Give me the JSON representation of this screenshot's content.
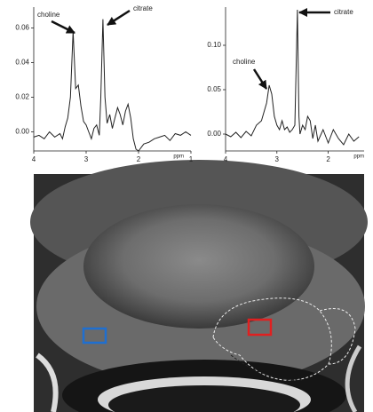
{
  "chart_data": [
    {
      "type": "line",
      "xlabel": "ppm",
      "color": "#222",
      "annotations": [
        "choline",
        "citrate"
      ],
      "x": [
        4.0,
        3.9,
        3.8,
        3.7,
        3.6,
        3.5,
        3.45,
        3.4,
        3.35,
        3.3,
        3.25,
        3.2,
        3.15,
        3.1,
        3.05,
        3.0,
        2.95,
        2.9,
        2.85,
        2.8,
        2.75,
        2.72,
        2.68,
        2.64,
        2.6,
        2.55,
        2.5,
        2.45,
        2.4,
        2.35,
        2.3,
        2.25,
        2.2,
        2.15,
        2.1,
        2.05,
        2.0,
        1.9,
        1.8,
        1.7,
        1.6,
        1.5,
        1.4,
        1.3,
        1.2,
        1.1,
        1.0
      ],
      "values": [
        -0.003,
        -0.002,
        -0.004,
        0.0,
        -0.003,
        -0.001,
        -0.004,
        0.003,
        0.008,
        0.02,
        0.058,
        0.025,
        0.027,
        0.015,
        0.006,
        0.004,
        0.0,
        -0.004,
        0.002,
        0.004,
        -0.002,
        0.02,
        0.065,
        0.02,
        0.005,
        0.01,
        0.002,
        0.008,
        0.014,
        0.01,
        0.004,
        0.012,
        0.016,
        0.008,
        -0.004,
        -0.01,
        -0.011,
        -0.007,
        -0.006,
        -0.004,
        -0.003,
        -0.002,
        -0.005,
        -0.001,
        -0.002,
        0.0,
        -0.002
      ],
      "xlim": [
        4,
        1
      ],
      "xticks": [
        4,
        3,
        2,
        1
      ],
      "ylim": [
        -0.011,
        0.072
      ],
      "yticks": [
        {
          "value": 0,
          "label": "0.00"
        },
        0.02,
        0.04,
        0.06
      ]
    },
    {
      "type": "line",
      "xlabel": "ppm",
      "color": "#222",
      "annotations": [
        "choline",
        "citrate"
      ],
      "x": [
        4.0,
        3.9,
        3.8,
        3.7,
        3.6,
        3.5,
        3.4,
        3.3,
        3.2,
        3.15,
        3.1,
        3.05,
        3.0,
        2.95,
        2.9,
        2.85,
        2.8,
        2.75,
        2.7,
        2.65,
        2.6,
        2.57,
        2.55,
        2.5,
        2.45,
        2.4,
        2.35,
        2.3,
        2.25,
        2.2,
        2.1,
        2.0,
        1.9,
        1.8,
        1.7,
        1.6,
        1.5,
        1.4
      ],
      "values": [
        0.0,
        -0.003,
        0.002,
        -0.004,
        0.003,
        -0.002,
        0.01,
        0.015,
        0.035,
        0.055,
        0.045,
        0.02,
        0.01,
        0.005,
        0.015,
        0.005,
        0.008,
        0.002,
        0.005,
        0.01,
        0.14,
        0.02,
        0.0,
        0.01,
        0.005,
        0.02,
        0.015,
        -0.005,
        0.01,
        -0.008,
        0.005,
        -0.01,
        0.005,
        -0.005,
        -0.012,
        0.0,
        -0.008,
        -0.003
      ],
      "xlim": [
        4,
        1.3
      ],
      "xticks": [
        4,
        3,
        2
      ],
      "ylim": [
        -0.019,
        0.143
      ],
      "yticks": [
        {
          "value": 0,
          "label": "0.00"
        },
        0.05,
        {
          "value": 0.1,
          "label": "0.10"
        }
      ]
    }
  ]
}
